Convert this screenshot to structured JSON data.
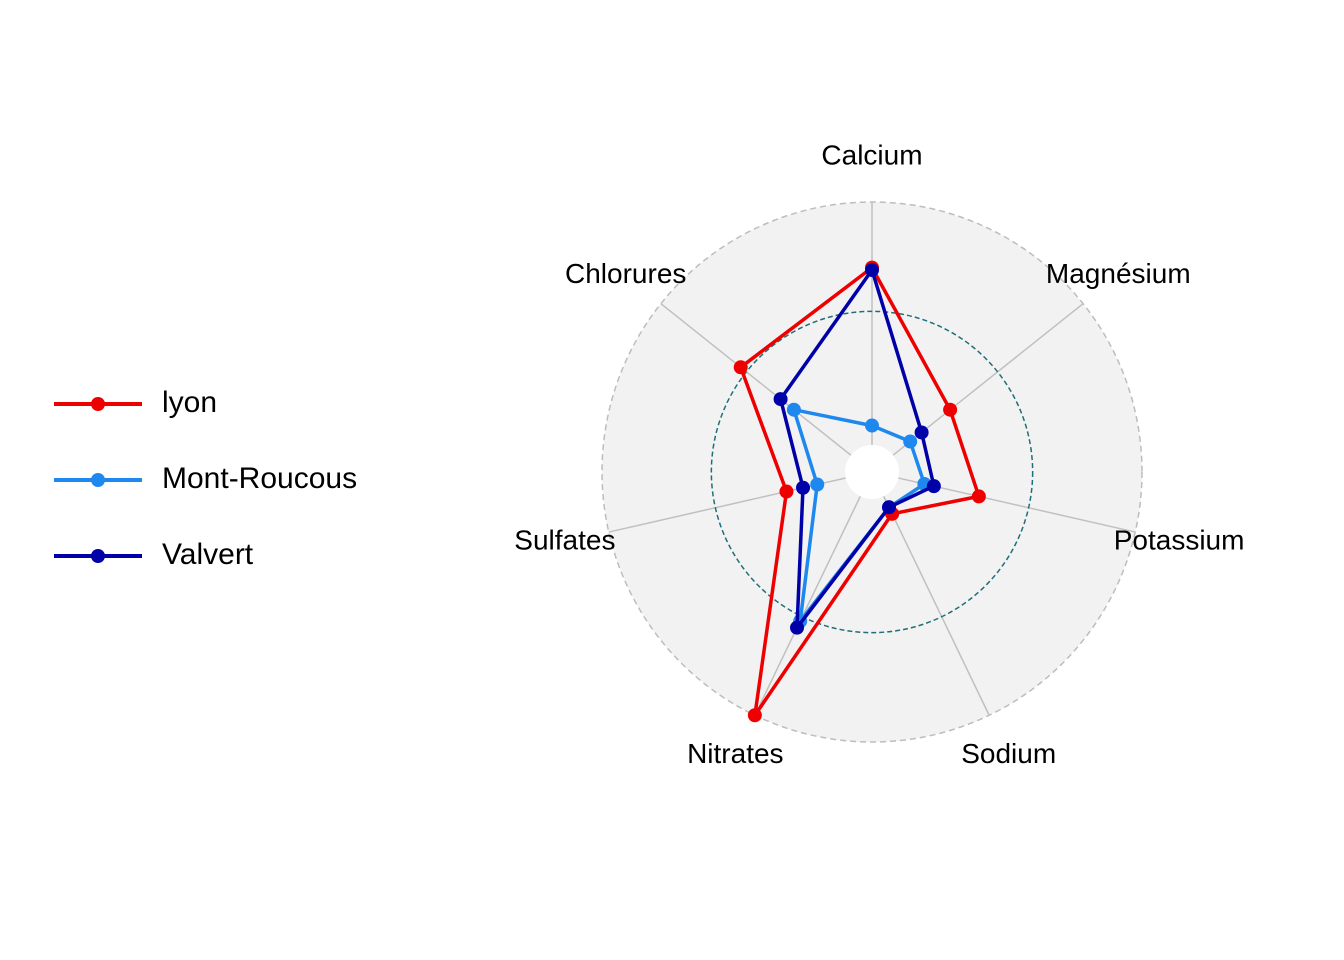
{
  "chart_data": {
    "type": "radar",
    "axes": [
      "Calcium",
      "Magnésium",
      "Potassium",
      "Sodium",
      "Nitrates",
      "Sulfates",
      "Chlorures"
    ],
    "range": [
      0,
      1
    ],
    "reference_circle": 0.55,
    "grid": true,
    "legend_position": "left",
    "series": [
      {
        "name": "lyon",
        "color": "#ee0000",
        "values": [
          0.73,
          0.3,
          0.34,
          0.08,
          1.0,
          0.25,
          0.58
        ]
      },
      {
        "name": "Mont-Roucous",
        "color": "#1e88ee",
        "values": [
          0.08,
          0.09,
          0.11,
          0.05,
          0.57,
          0.12,
          0.3
        ]
      },
      {
        "name": "Valvert",
        "color": "#0000a8",
        "values": [
          0.72,
          0.15,
          0.15,
          0.05,
          0.6,
          0.18,
          0.37
        ]
      }
    ]
  }
}
